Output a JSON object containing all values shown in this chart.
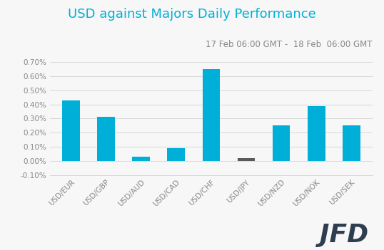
{
  "title": "USD against Majors Daily Performance",
  "subtitle": "17 Feb 06:00 GMT -  18 Feb  06:00 GMT",
  "categories": [
    "USD/EUR",
    "USD/GBP",
    "USD/AUD",
    "USD/CAD",
    "USD/CHF",
    "USD/JPY",
    "USD/NZD",
    "USD/NOK",
    "USD/SEK"
  ],
  "values": [
    0.0043,
    0.0031,
    0.0003,
    0.0009,
    0.0065,
    0.0002,
    0.0025,
    0.0039,
    0.0025
  ],
  "bar_colors": [
    "#00afd7",
    "#00afd7",
    "#00afd7",
    "#00afd7",
    "#00afd7",
    "#5a5a5a",
    "#00afd7",
    "#00afd7",
    "#00afd7"
  ],
  "ylim_min": -0.001,
  "ylim_max": 0.0075,
  "yticks": [
    -0.001,
    0.0,
    0.001,
    0.002,
    0.003,
    0.004,
    0.005,
    0.006,
    0.007
  ],
  "ytick_labels": [
    "-0.10%",
    "0.00%",
    "0.10%",
    "0.20%",
    "0.30%",
    "0.40%",
    "0.50%",
    "0.60%",
    "0.70%"
  ],
  "title_color": "#00afd7",
  "subtitle_color": "#888888",
  "tick_color": "#888888",
  "grid_color": "#d8d8d8",
  "background_color": "#f7f7f7",
  "title_fontsize": 13,
  "subtitle_fontsize": 8.5,
  "tick_fontsize": 7.5,
  "xlabel_fontsize": 7.5,
  "jfd_color": "#2e3d4f"
}
